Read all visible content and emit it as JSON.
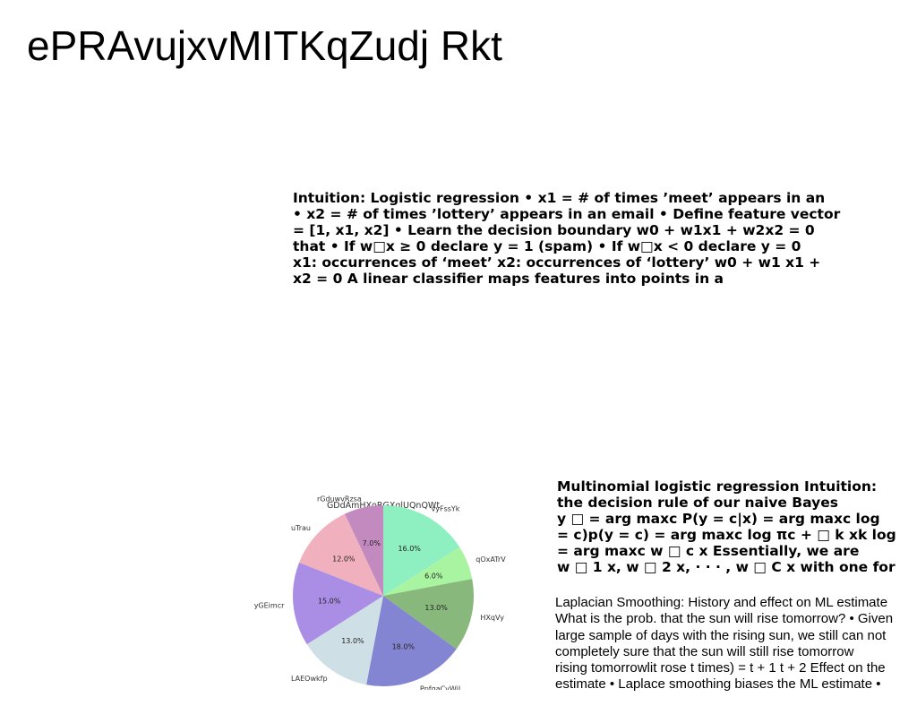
{
  "slide": {
    "title": "ePRAvujxvMITKqZudj Rkt"
  },
  "blocks": {
    "logistic": {
      "lines": [
        "Intuition: Logistic regression • x1 = # of times ’meet’ appears in an",
        "• x2 = # of times ’lottery’ appears in an email • Define feature vector",
        "= [1, x1, x2] • Learn the decision boundary w0 + w1x1 + w2x2 = 0",
        "that • If w□x ≥ 0 declare y = 1 (spam) • If w□x < 0 declare y = 0",
        "x1: occurrences of ‘meet’ x2: occurrences of ‘lottery’ w0 + w1 x1 +",
        "x2 = 0 A linear classifier maps features into points in a"
      ]
    },
    "multinomial": {
      "lines": [
        "Multinomial logistic regression Intuition:",
        "the decision rule of our naive Bayes",
        "y □ = arg maxc P(y = c|x) = arg maxc log",
        "= c)p(y = c) = arg maxc log πc + □ k xk log",
        "= arg maxc w □ c x Essentially, we are",
        "w □ 1 x, w □ 2 x, · · · , w □ C x with one for"
      ]
    },
    "laplacian": {
      "lines": [
        "Laplacian Smoothing: History and effect on ML estimate",
        "What is the prob. that the sun will rise tomorrow? • Given",
        "large sample of days with the rising sun, we still can not",
        "completely sure that the sun will still rise tomorrow",
        "rising tomorrowlit rose t times) = t + 1 t + 2 Effect on the",
        "estimate • Laplace smoothing biases the ML estimate •"
      ]
    }
  },
  "chart_data": {
    "type": "pie",
    "title": "GDdAmHXoRGXqlUQnQWt",
    "start_angle_deg": 90,
    "direction": "clockwise",
    "slices": [
      {
        "label": "vyFssYk",
        "value": 16.0,
        "pct_label": "16.0%",
        "color": "#8eefc0"
      },
      {
        "label": "qOxATrV",
        "value": 6.0,
        "pct_label": "6.0%",
        "color": "#a8f4a0"
      },
      {
        "label": "HXqVy",
        "value": 13.0,
        "pct_label": "13.0%",
        "color": "#88b87c"
      },
      {
        "label": "PpfgaCvWiL",
        "value": 18.0,
        "pct_label": "18.0%",
        "color": "#8485d2"
      },
      {
        "label": "LAEOwkfp",
        "value": 13.0,
        "pct_label": "13.0%",
        "color": "#cfdfe6"
      },
      {
        "label": "yGEimcr",
        "value": 15.0,
        "pct_label": "15.0%",
        "color": "#aa8ee6"
      },
      {
        "label": "uTrau",
        "value": 12.0,
        "pct_label": "12.0%",
        "color": "#f0b0be"
      },
      {
        "label": "rGduwvRzsa",
        "value": 7.0,
        "pct_label": "7.0%",
        "color": "#c38ac0"
      }
    ]
  }
}
